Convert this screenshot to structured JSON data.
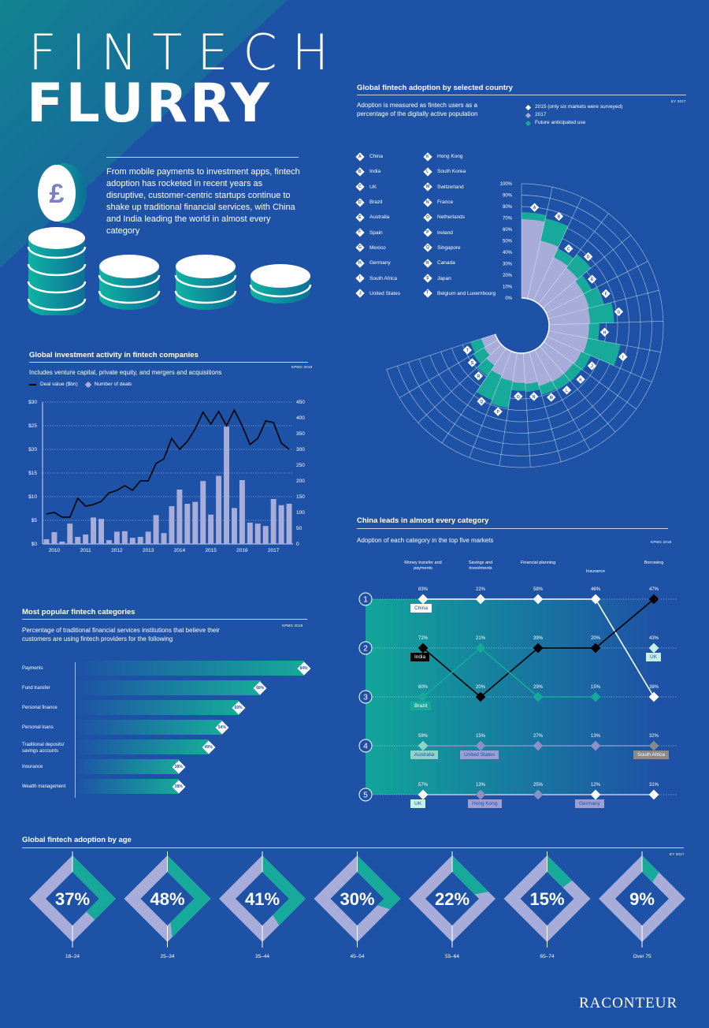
{
  "header": {
    "title_line1": "FINTECH",
    "title_line2": "FLURRY",
    "intro": "From mobile payments to investment apps, fintech adoption has rocketed in recent years as disruptive, customer-centric startups continue to shake up traditional financial services, with China and India leading the world in almost every category"
  },
  "colors": {
    "background": "#1e52a6",
    "teal": "#17a99a",
    "lavender": "#a7acd9",
    "dark_teal": "#0e7f8a"
  },
  "chart_data": [
    {
      "id": "country",
      "type": "polar-bar",
      "title": "Global fintech adoption by selected country",
      "subtitle": "Adoption is measured as fintech users as a percentage of the digitally active population",
      "source": "EY 2017",
      "legend": [
        "2015 (only six markets were surveyed)",
        "2017",
        "Future anticipated use"
      ],
      "radial_ticks": [
        "100%",
        "90%",
        "80%",
        "70%",
        "60%",
        "50%",
        "40%",
        "30%",
        "20%",
        "10%",
        "0%"
      ],
      "countries": [
        {
          "letter": "A",
          "name": "China",
          "v2017": 69,
          "future": 75
        },
        {
          "letter": "B",
          "name": "India",
          "v2017": 52,
          "future": 72
        },
        {
          "letter": "C",
          "name": "UK",
          "v2017": 42,
          "future": 50
        },
        {
          "letter": "D",
          "name": "Brazil",
          "v2017": 40,
          "future": 55
        },
        {
          "letter": "E",
          "name": "Australia",
          "v2017": 37,
          "future": 45
        },
        {
          "letter": "F",
          "name": "Spain",
          "v2017": 37,
          "future": 50
        },
        {
          "letter": "G",
          "name": "Mexico",
          "v2017": 36,
          "future": 57
        },
        {
          "letter": "H",
          "name": "Germany",
          "v2017": 35,
          "future": 44
        },
        {
          "letter": "I",
          "name": "South Africa",
          "v2017": 35,
          "future": 64
        },
        {
          "letter": "J",
          "name": "United States",
          "v2017": 33,
          "future": 42
        },
        {
          "letter": "K",
          "name": "Hong Kong",
          "v2017": 32,
          "future": 41
        },
        {
          "letter": "L",
          "name": "South Korea",
          "v2017": 32,
          "future": 40
        },
        {
          "letter": "M",
          "name": "Switzerland",
          "v2017": 31,
          "future": 39
        },
        {
          "letter": "N",
          "name": "France",
          "v2017": 27,
          "future": 34
        },
        {
          "letter": "O",
          "name": "Netherlands",
          "v2017": 26,
          "future": 33
        },
        {
          "letter": "P",
          "name": "Ireland",
          "v2017": 25,
          "future": 49
        },
        {
          "letter": "Q",
          "name": "Singapore",
          "v2017": 23,
          "future": 46
        },
        {
          "letter": "R",
          "name": "Canada",
          "v2017": 18,
          "future": 29
        },
        {
          "letter": "S",
          "name": "Japan",
          "v2017": 14,
          "future": 25
        },
        {
          "letter": "T",
          "name": "Belgium and Luxembourg",
          "v2017": 13,
          "future": 23
        }
      ]
    },
    {
      "id": "investment",
      "type": "bar+line",
      "title": "Global investment activity in fintech companies",
      "subtitle": "Includes venture capital, private equity, and mergers and acquisitions",
      "source": "KPMG 2018",
      "series_names": [
        "Deal value ($bn)",
        "Number of deals"
      ],
      "x_labels": [
        "2010",
        "2011",
        "2012",
        "2013",
        "2014",
        "2015",
        "2016",
        "2017"
      ],
      "left_ticks": [
        "$30",
        "$25",
        "$20",
        "$15",
        "$10",
        "$5",
        "$0"
      ],
      "right_ticks": [
        "450",
        "400",
        "350",
        "300",
        "250",
        "200",
        "150",
        "100",
        "50",
        "0"
      ],
      "deal_value": [
        1,
        2.5,
        0.5,
        4.3,
        1.5,
        2,
        5.6,
        5.3,
        0.8,
        2.6,
        2.7,
        1.3,
        1.5,
        2.6,
        6.1,
        2.3,
        8,
        11.5,
        8.5,
        8.9,
        13.3,
        6.2,
        14.4,
        24.8,
        7.6,
        13.5,
        4.5,
        4.3,
        3.8,
        9.5,
        8.2,
        8.5
      ],
      "num_deals": [
        95,
        100,
        85,
        85,
        145,
        120,
        125,
        135,
        162,
        170,
        185,
        170,
        200,
        200,
        255,
        270,
        335,
        300,
        325,
        365,
        418,
        380,
        420,
        375,
        425,
        375,
        315,
        335,
        390,
        385,
        320,
        300
      ]
    },
    {
      "id": "categories",
      "type": "bar",
      "title": "Most popular fintech categories",
      "subtitle": "Percentage of traditional financial services institutions that believe their customers are using fintech providers for the following",
      "source": "KPMG 2018",
      "categories": [
        "Payments",
        "Fund transfer",
        "Personal finance",
        "Personal loans",
        "Traditional deposits/ savings accounts",
        "Insurance",
        "Wealth management"
      ],
      "values": [
        84,
        68,
        60,
        54,
        49,
        38,
        38
      ],
      "labels": [
        "84%",
        "68%",
        "60%",
        "54%",
        "49%",
        "38%",
        "38%"
      ]
    },
    {
      "id": "china",
      "type": "line",
      "title": "China leads in almost every category",
      "subtitle": "Adoption of each category in the top five markets",
      "source": "KPMG 2018",
      "columns": [
        "Money transfer and payments",
        "Savings and investments",
        "Financial planning",
        "Insurance",
        "Borrowing"
      ],
      "ranks": [
        "1",
        "2",
        "3",
        "4",
        "5"
      ],
      "rows": [
        [
          "83%",
          "22%",
          "58%",
          "46%",
          "47%"
        ],
        [
          "72%",
          "21%",
          "39%",
          "20%",
          "43%"
        ],
        [
          "60%",
          "20%",
          "29%",
          "15%",
          "38%"
        ],
        [
          "59%",
          "15%",
          "27%",
          "13%",
          "32%"
        ],
        [
          "57%",
          "13%",
          "25%",
          "12%",
          "31%"
        ]
      ],
      "market_labels": [
        {
          "text": "China",
          "col": 0,
          "row": 0,
          "style": "white"
        },
        {
          "text": "India",
          "col": 0,
          "row": 1,
          "style": "black"
        },
        {
          "text": "UK",
          "col": 4,
          "row": 1,
          "style": "pale"
        },
        {
          "text": "Brazil",
          "col": 0,
          "row": 2,
          "style": "teal"
        },
        {
          "text": "Australia",
          "col": 0,
          "row": 3,
          "style": "lteal"
        },
        {
          "text": "United States",
          "col": 1,
          "row": 3,
          "style": "lav"
        },
        {
          "text": "South Africa",
          "col": 4,
          "row": 3,
          "style": "grey"
        },
        {
          "text": "UK",
          "col": 0,
          "row": 4,
          "style": "pale"
        },
        {
          "text": "Hong Kong",
          "col": 1,
          "row": 4,
          "style": "lav"
        },
        {
          "text": "Germany",
          "col": 3,
          "row": 4,
          "style": "lav"
        }
      ]
    },
    {
      "id": "age",
      "type": "gauge",
      "title": "Global fintech adoption by age",
      "source": "EY 2017",
      "groups": [
        {
          "label": "18–24",
          "value": 37,
          "text": "37%"
        },
        {
          "label": "25–34",
          "value": 48,
          "text": "48%"
        },
        {
          "label": "35–44",
          "value": 41,
          "text": "41%"
        },
        {
          "label": "45–54",
          "value": 30,
          "text": "30%"
        },
        {
          "label": "55–64",
          "value": 22,
          "text": "22%"
        },
        {
          "label": "65–74",
          "value": 15,
          "text": "15%"
        },
        {
          "label": "Over 75",
          "value": 9,
          "text": "9%"
        }
      ]
    }
  ],
  "footer": {
    "brand": "RACONTEUR"
  }
}
